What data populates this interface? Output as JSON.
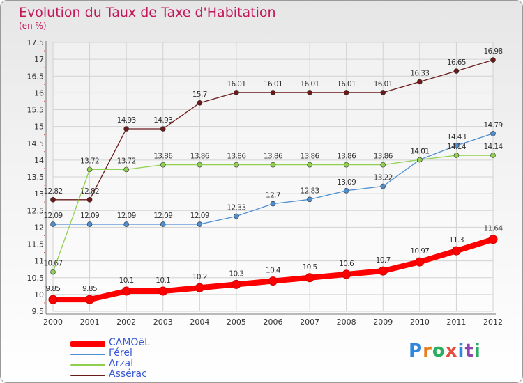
{
  "title": "Evolution du Taux de Taxe d'Habitation",
  "subtitle": "(en %)",
  "logo": {
    "letters": [
      "P",
      "r",
      "o",
      "x",
      "i",
      "t",
      "i"
    ],
    "colors": [
      "#2e86de",
      "#e67e22",
      "#27ae60",
      "#e74c3c",
      "#2e86de",
      "#8e44ad",
      "#27ae60"
    ]
  },
  "chart_data": {
    "type": "line",
    "x": [
      2000,
      2001,
      2002,
      2003,
      2004,
      2005,
      2006,
      2007,
      2008,
      2009,
      2010,
      2011,
      2012
    ],
    "ylim": [
      9.5,
      17.5
    ],
    "yticks": [
      "9.5",
      "10",
      "10.5",
      "11",
      "11.5",
      "12",
      "12.5",
      "13",
      "13.5",
      "14",
      "14.5",
      "15",
      "15.5",
      "16",
      "16.5",
      "17",
      "17.5"
    ],
    "grid": true,
    "legend_placement": "bottom-left",
    "series": [
      {
        "name": "Assérac",
        "color": "#6b1a1a",
        "values": [
          12.82,
          12.82,
          14.93,
          14.93,
          15.7,
          16.01,
          16.01,
          16.01,
          16.01,
          16.01,
          16.33,
          16.65,
          16.98
        ],
        "labels": [
          "12.82",
          "12.82",
          "14.93",
          "14.93",
          "15.7",
          "16.01",
          "16.01",
          "16.01",
          "16.01",
          "16.01",
          "16.33",
          "16.65",
          "16.98"
        ]
      },
      {
        "name": "Férel",
        "color": "#4f8fd1",
        "values": [
          12.09,
          12.09,
          12.09,
          12.09,
          12.09,
          12.33,
          12.7,
          12.83,
          13.09,
          13.22,
          14.01,
          14.43,
          14.79
        ],
        "labels": [
          "12.09",
          "12.09",
          "12.09",
          "12.09",
          "12.09",
          "12.33",
          "12.7",
          "12.83",
          "13.09",
          "13.22",
          "14.01",
          "14.43",
          "14.79"
        ]
      },
      {
        "name": "Arzal",
        "color": "#8fd14f",
        "values": [
          10.67,
          13.72,
          13.72,
          13.86,
          13.86,
          13.86,
          13.86,
          13.86,
          13.86,
          13.86,
          14.01,
          14.14,
          14.14
        ],
        "labels": [
          "10.67",
          "13.72",
          "13.72",
          "13.86",
          "13.86",
          "13.86",
          "13.86",
          "13.86",
          "13.86",
          "13.86",
          "14.01",
          "14.14",
          "14.14"
        ]
      },
      {
        "name": "CAMOëL",
        "color": "#ff0000",
        "values": [
          9.85,
          9.85,
          10.1,
          10.1,
          10.2,
          10.3,
          10.4,
          10.5,
          10.6,
          10.7,
          10.97,
          11.3,
          11.64
        ],
        "labels": [
          "9.85",
          "9.85",
          "10.1",
          "10.1",
          "10.2",
          "10.3",
          "10.4",
          "10.5",
          "10.6",
          "10.7",
          "10.97",
          "11.3",
          "11.64"
        ]
      }
    ]
  },
  "legend": [
    {
      "label": "CAMOëL",
      "color": "#ff0000",
      "weight": "thick"
    },
    {
      "label": "Férel",
      "color": "#4f8fd1",
      "weight": "thin"
    },
    {
      "label": "Arzal",
      "color": "#8fd14f",
      "weight": "thin"
    },
    {
      "label": "Assérac",
      "color": "#6b1a1a",
      "weight": "thin"
    }
  ]
}
